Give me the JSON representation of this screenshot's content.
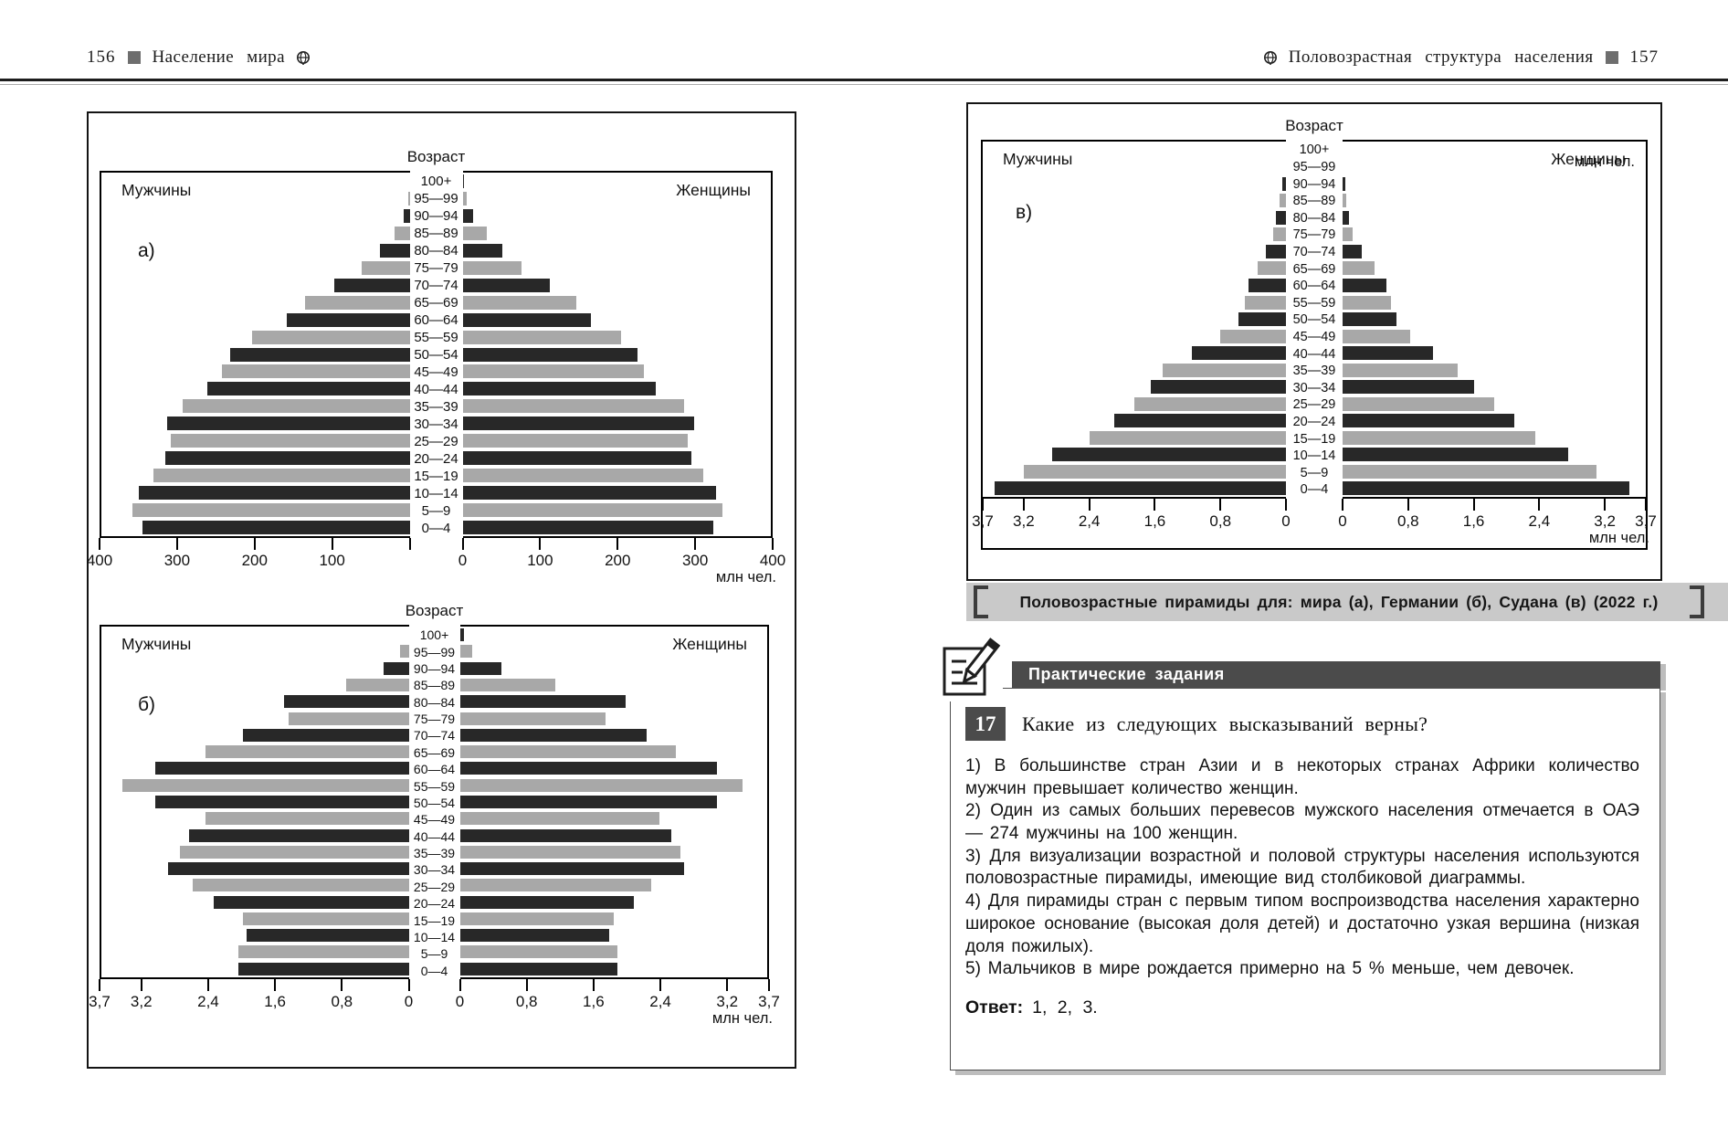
{
  "page_left": {
    "page_number": "156",
    "header_title": "Население мира"
  },
  "page_right": {
    "page_number": "157",
    "header_title": "Половозрастная структура населения"
  },
  "figure_caption": {
    "text": "Половозрастные пирамиды для: мира (а), Германии (б), Судана (в) (2022 г.)"
  },
  "tasks": {
    "section_title": "Практические задания",
    "task_number": "17",
    "question": "Какие из следующих высказываний верны?",
    "items": [
      "1) В большинстве стран Азии и в некоторых странах Африки количество мужчин превышает количество женщин.",
      "2) Один из самых больших перевесов мужского населения отмечается в ОАЭ — 274 мужчины на 100 женщин.",
      "3) Для визуализации возрастной и половой структуры населения используются половозрастные пирамиды, имеющие вид столбиковой диаграммы.",
      "4) Для пирамиды стран с первым типом воспроизводства населения характерно широкое основание (высокая доля детей) и достаточно узкая вершина (низкая доля пожилых).",
      "5) Мальчиков в мире рождается примерно на 5 % меньше, чем девочек."
    ],
    "answer_label": "Ответ:",
    "answer_value": "1, 2, 3."
  },
  "colors": {
    "bar_dark": "#282828",
    "bar_gray": "#a8a8a8",
    "caption_band": "#c9c9c9",
    "band_dark": "#4b4b4b",
    "page_marker": "#6e6e6e"
  },
  "chart_data": [
    {
      "id": "a",
      "type": "bar",
      "subtype": "population-pyramid",
      "panel_label": "а)",
      "title": "Возраст",
      "male_label": "Мужчины",
      "female_label": "Женщины",
      "unit": "млн чел.",
      "xmax": 400,
      "age_groups": [
        "100+",
        "95—99",
        "90—94",
        "85—89",
        "80—84",
        "75—79",
        "70—74",
        "65—69",
        "60—64",
        "55—59",
        "50—54",
        "45—49",
        "40—44",
        "35—39",
        "30—34",
        "25—29",
        "20—24",
        "15—19",
        "10—14",
        "5—9",
        "0—4"
      ],
      "male": [
        0.3,
        2,
        8,
        19,
        38,
        62,
        98,
        136,
        160,
        205,
        233,
        243,
        263,
        295,
        315,
        310,
        317,
        332,
        352,
        360,
        347
      ],
      "female": [
        1,
        5,
        14,
        31,
        51,
        76,
        113,
        147,
        167,
        206,
        227,
        235,
        251,
        287,
        301,
        292,
        297,
        312,
        329,
        337,
        325
      ],
      "male_ticks": [
        {
          "v": 400,
          "t": "400"
        },
        {
          "v": 300,
          "t": "300"
        },
        {
          "v": 200,
          "t": "200"
        },
        {
          "v": 100,
          "t": "100"
        },
        {
          "v": 0,
          "t": ""
        }
      ],
      "female_ticks": [
        {
          "v": 0,
          "t": "0"
        },
        {
          "v": 100,
          "t": "100"
        },
        {
          "v": 200,
          "t": "200"
        },
        {
          "v": 300,
          "t": "300"
        },
        {
          "v": 400,
          "t": "400"
        }
      ]
    },
    {
      "id": "b",
      "type": "bar",
      "subtype": "population-pyramid",
      "panel_label": "б)",
      "title": "Возраст",
      "male_label": "Мужчины",
      "female_label": "Женщины",
      "unit": "млн чел.",
      "xmax": 3.7,
      "age_groups": [
        "100+",
        "95—99",
        "90—94",
        "85—89",
        "80—84",
        "75—79",
        "70—74",
        "65—69",
        "60—64",
        "55—59",
        "50—54",
        "45—49",
        "40—44",
        "35—39",
        "30—34",
        "25—29",
        "20—24",
        "15—19",
        "10—14",
        "5—9",
        "0—4"
      ],
      "male": [
        0,
        0.1,
        0.3,
        0.75,
        1.5,
        1.45,
        2.0,
        2.45,
        3.05,
        3.45,
        3.05,
        2.45,
        2.65,
        2.75,
        2.9,
        2.6,
        2.35,
        2.0,
        1.95,
        2.05,
        2.05
      ],
      "female": [
        0.05,
        0.15,
        0.5,
        1.15,
        2.0,
        1.75,
        2.25,
        2.6,
        3.1,
        3.4,
        3.1,
        2.4,
        2.55,
        2.65,
        2.7,
        2.3,
        2.1,
        1.85,
        1.8,
        1.9,
        1.9
      ],
      "male_ticks": [
        {
          "v": 3.7,
          "t": "3,7"
        },
        {
          "v": 3.2,
          "t": "3,2"
        },
        {
          "v": 2.4,
          "t": "2,4"
        },
        {
          "v": 1.6,
          "t": "1,6"
        },
        {
          "v": 0.8,
          "t": "0,8"
        },
        {
          "v": 0,
          "t": "0"
        }
      ],
      "female_ticks": [
        {
          "v": 0,
          "t": "0"
        },
        {
          "v": 0.8,
          "t": "0,8"
        },
        {
          "v": 1.6,
          "t": "1,6"
        },
        {
          "v": 2.4,
          "t": "2,4"
        },
        {
          "v": 3.2,
          "t": "3,2"
        },
        {
          "v": 3.7,
          "t": "3,7"
        }
      ]
    },
    {
      "id": "v",
      "type": "bar",
      "subtype": "population-pyramid",
      "panel_label": "в)",
      "title": "Возраст",
      "male_label": "Мужчины",
      "female_label": "Женщины",
      "unit": "млн чел.",
      "unit_repeat": true,
      "xmax": 3.7,
      "age_groups": [
        "100+",
        "95—99",
        "90—94",
        "85—89",
        "80—84",
        "75—79",
        "70—74",
        "65—69",
        "60—64",
        "55—59",
        "50—54",
        "45—49",
        "40—44",
        "35—39",
        "30—34",
        "25—29",
        "20—24",
        "15—19",
        "10—14",
        "5—9",
        "0—4"
      ],
      "male": [
        0,
        0,
        0.04,
        0.08,
        0.12,
        0.16,
        0.24,
        0.35,
        0.46,
        0.5,
        0.58,
        0.8,
        1.15,
        1.5,
        1.65,
        1.85,
        2.1,
        2.4,
        2.85,
        3.2,
        3.55
      ],
      "female": [
        0,
        0,
        0.03,
        0.05,
        0.08,
        0.12,
        0.23,
        0.39,
        0.53,
        0.59,
        0.66,
        0.82,
        1.1,
        1.4,
        1.6,
        1.85,
        2.1,
        2.35,
        2.75,
        3.1,
        3.5
      ],
      "male_ticks": [
        {
          "v": 3.7,
          "t": "3,7"
        },
        {
          "v": 3.2,
          "t": "3,2"
        },
        {
          "v": 2.4,
          "t": "2,4"
        },
        {
          "v": 1.6,
          "t": "1,6"
        },
        {
          "v": 0.8,
          "t": "0,8"
        },
        {
          "v": 0,
          "t": "0"
        }
      ],
      "female_ticks": [
        {
          "v": 0,
          "t": "0"
        },
        {
          "v": 0.8,
          "t": "0,8"
        },
        {
          "v": 1.6,
          "t": "1,6"
        },
        {
          "v": 2.4,
          "t": "2,4"
        },
        {
          "v": 3.2,
          "t": "3,2"
        },
        {
          "v": 3.7,
          "t": "3,7"
        }
      ]
    }
  ]
}
